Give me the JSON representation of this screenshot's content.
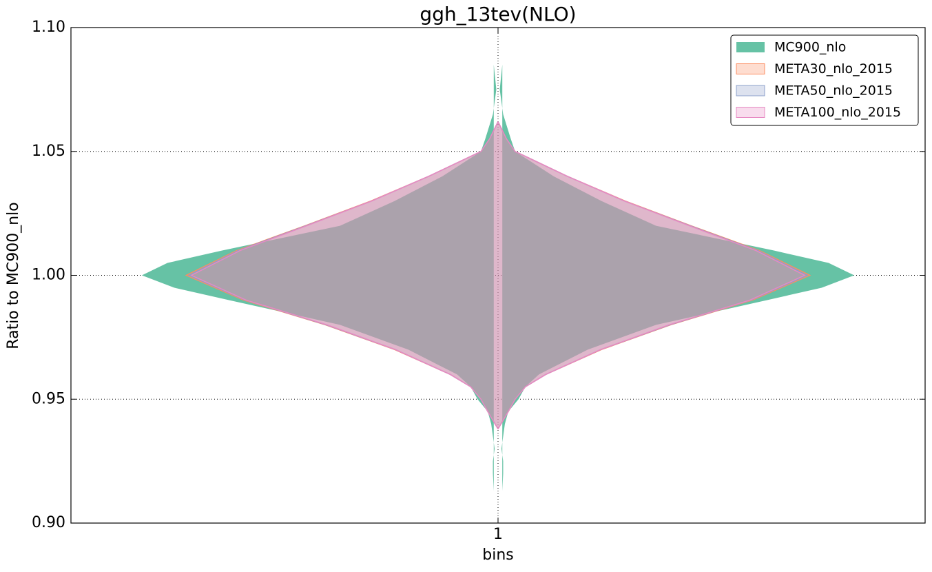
{
  "chart_data": {
    "type": "violin",
    "title": "ggh_13tev(NLO)",
    "x_label": "bins",
    "y_label": "Ratio to MC900_nlo",
    "categories": [
      "1"
    ],
    "xlim": [
      0.5,
      1.5
    ],
    "ylim": [
      0.9,
      1.1
    ],
    "yticks": [
      {
        "value": 0.9,
        "label": "0.90"
      },
      {
        "value": 0.95,
        "label": "0.95"
      },
      {
        "value": 1.0,
        "label": "1.00"
      },
      {
        "value": 1.05,
        "label": "1.05"
      },
      {
        "value": 1.1,
        "label": "1.10"
      }
    ],
    "grid": true,
    "legend": "upper right",
    "series": [
      {
        "name": "MC900_nlo",
        "color": "#66c2a5",
        "y": [
          1.085,
          1.075,
          1.065,
          1.055,
          1.05,
          1.04,
          1.03,
          1.02,
          1.01,
          1.005,
          1.0,
          0.995,
          0.99,
          0.98,
          0.97,
          0.96,
          0.955,
          0.95,
          0.945,
          0.94,
          0.93,
          0.925,
          0.92,
          0.913
        ],
        "widths": [
          0.005,
          0.002,
          0.006,
          0.015,
          0.02,
          0.065,
          0.121,
          0.185,
          0.323,
          0.387,
          0.417,
          0.379,
          0.315,
          0.185,
          0.105,
          0.048,
          0.032,
          0.024,
          0.012,
          0.008,
          0.004,
          0.006,
          0.006,
          0.005
        ]
      },
      {
        "name": "META30_nlo_2015",
        "color": "#fc8d62",
        "y": [
          1.062,
          1.055,
          1.05,
          1.04,
          1.03,
          1.02,
          1.01,
          1.0,
          0.99,
          0.98,
          0.97,
          0.96,
          0.955,
          0.95,
          0.945,
          0.938
        ],
        "widths": [
          0,
          0.01,
          0.02,
          0.081,
          0.149,
          0.226,
          0.306,
          0.365,
          0.298,
          0.202,
          0.121,
          0.056,
          0.032,
          0.02,
          0.012,
          0
        ]
      },
      {
        "name": "META50_nlo_2015",
        "color": "#8da0cb",
        "y": [
          1.062,
          1.055,
          1.05,
          1.04,
          1.03,
          1.02,
          1.01,
          1.0,
          0.99,
          0.98,
          0.97,
          0.96,
          0.955,
          0.95,
          0.945,
          0.938
        ],
        "widths": [
          0,
          0.01,
          0.02,
          0.081,
          0.148,
          0.225,
          0.304,
          0.362,
          0.296,
          0.201,
          0.12,
          0.056,
          0.032,
          0.02,
          0.012,
          0
        ]
      },
      {
        "name": "META100_nlo_2015",
        "color": "#e78ac3",
        "y": [
          1.062,
          1.055,
          1.05,
          1.04,
          1.03,
          1.02,
          1.01,
          1.0,
          0.99,
          0.98,
          0.97,
          0.96,
          0.955,
          0.95,
          0.945,
          0.938
        ],
        "widths": [
          0,
          0.01,
          0.02,
          0.081,
          0.148,
          0.224,
          0.302,
          0.359,
          0.295,
          0.2,
          0.12,
          0.056,
          0.032,
          0.02,
          0.012,
          0
        ]
      }
    ]
  }
}
